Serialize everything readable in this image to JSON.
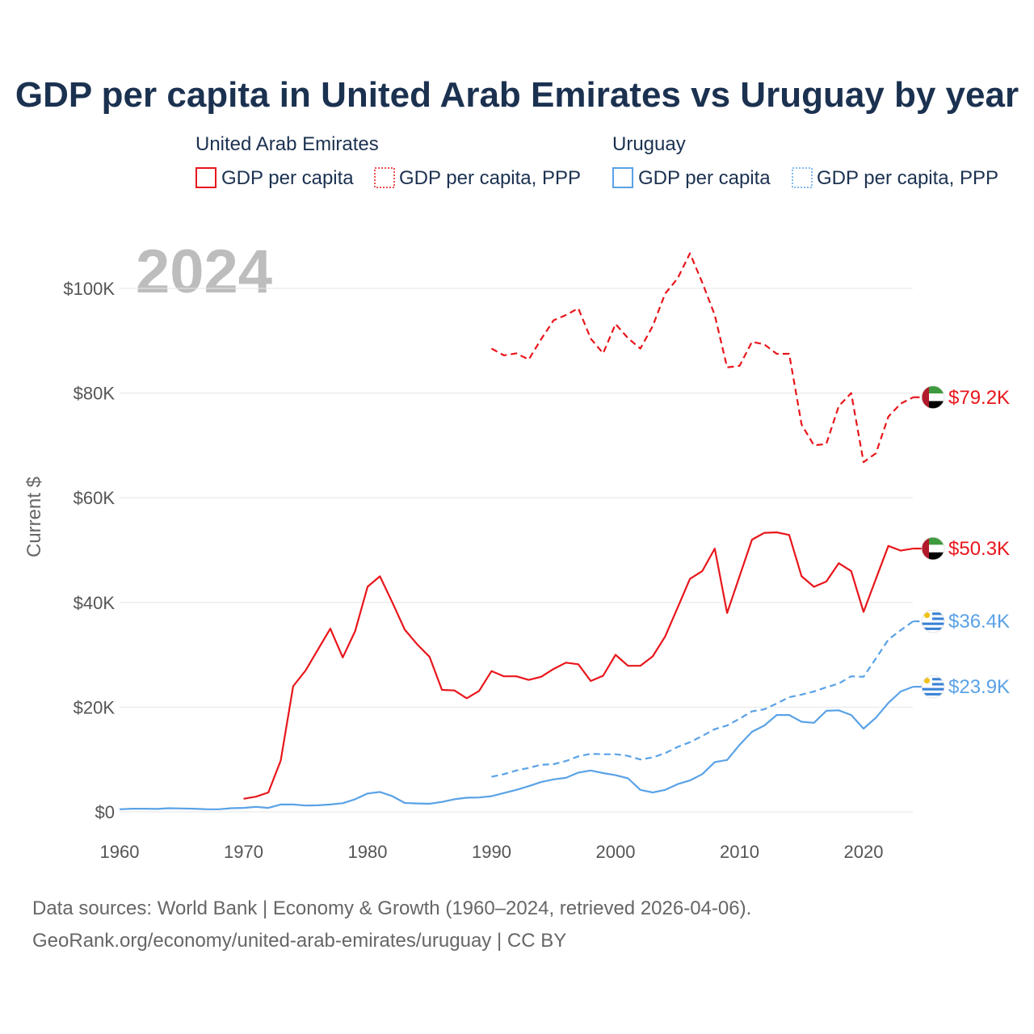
{
  "colors": {
    "uae": "#e8161b",
    "uruguay": "#5aa2e6",
    "title": "#1b3150",
    "tick": "#555555",
    "grid": "#e6e6e6"
  },
  "chart_data": {
    "type": "line",
    "title": "GDP per capita in United Arab Emirates vs Uruguay by year",
    "ylabel": "Current $",
    "xlabel": "",
    "year_label": "2024",
    "xlim": [
      1960,
      2024
    ],
    "ylim": [
      0,
      110000
    ],
    "xticks": [
      1960,
      1970,
      1980,
      1990,
      2000,
      2010,
      2020
    ],
    "xtick_labels": [
      "1960",
      "1970",
      "1980",
      "1990",
      "2000",
      "2010",
      "2020"
    ],
    "yticks": [
      0,
      20000,
      40000,
      60000,
      80000,
      100000
    ],
    "ytick_labels": [
      "$0",
      "$20K",
      "$40K",
      "$60K",
      "$80K",
      "$100K"
    ],
    "legend": {
      "groups": [
        {
          "name": "United Arab Emirates",
          "entries": [
            "GDP per capita",
            "GDP per capita, PPP"
          ]
        },
        {
          "name": "Uruguay",
          "entries": [
            "GDP per capita",
            "GDP per capita, PPP"
          ]
        }
      ]
    },
    "series": [
      {
        "name": "United Arab Emirates GDP per capita",
        "country": "uae",
        "dashed": false,
        "end_label": "$50.3K",
        "x": [
          1970,
          1971,
          1972,
          1973,
          1974,
          1975,
          1976,
          1977,
          1978,
          1979,
          1980,
          1981,
          1982,
          1983,
          1984,
          1985,
          1986,
          1987,
          1988,
          1989,
          1990,
          1991,
          1992,
          1993,
          1994,
          1995,
          1996,
          1997,
          1998,
          1999,
          2000,
          2001,
          2002,
          2003,
          2004,
          2005,
          2006,
          2007,
          2008,
          2009,
          2010,
          2011,
          2012,
          2013,
          2014,
          2015,
          2016,
          2017,
          2018,
          2019,
          2020,
          2021,
          2022,
          2023,
          2024
        ],
        "values": [
          2500,
          2900,
          3700,
          9800,
          24000,
          27000,
          31000,
          35000,
          29500,
          34500,
          43000,
          45000,
          40000,
          34800,
          32000,
          29600,
          23300,
          23200,
          21700,
          23100,
          26900,
          25900,
          25900,
          25200,
          25800,
          27300,
          28500,
          28200,
          25000,
          26000,
          30000,
          27900,
          27900,
          29700,
          33500,
          39000,
          44500,
          46000,
          50300,
          38000,
          45000,
          52000,
          53300,
          53400,
          52900,
          45000,
          43000,
          44000,
          47500,
          46000,
          38200,
          44500,
          50800,
          49900,
          50300
        ]
      },
      {
        "name": "United Arab Emirates GDP per capita, PPP",
        "country": "uae",
        "dashed": true,
        "end_label": "$79.2K",
        "x": [
          1990,
          1991,
          1992,
          1993,
          1994,
          1995,
          1996,
          1997,
          1998,
          1999,
          2000,
          2001,
          2002,
          2003,
          2004,
          2005,
          2006,
          2007,
          2008,
          2009,
          2010,
          2011,
          2012,
          2013,
          2014,
          2015,
          2016,
          2017,
          2018,
          2019,
          2020,
          2021,
          2022,
          2023,
          2024
        ],
        "values": [
          88500,
          87200,
          87600,
          86400,
          90300,
          93900,
          94900,
          96200,
          90400,
          87600,
          93200,
          90500,
          88500,
          92800,
          99000,
          101900,
          106700,
          101100,
          94900,
          84900,
          85200,
          89800,
          89300,
          87500,
          87500,
          74000,
          70000,
          70300,
          77500,
          80000,
          66800,
          68500,
          75500,
          78000,
          79200
        ]
      },
      {
        "name": "Uruguay GDP per capita",
        "country": "uruguay",
        "dashed": false,
        "end_label": "$23.9K",
        "x": [
          1960,
          1961,
          1962,
          1963,
          1964,
          1965,
          1966,
          1967,
          1968,
          1969,
          1970,
          1971,
          1972,
          1973,
          1974,
          1975,
          1976,
          1977,
          1978,
          1979,
          1980,
          1981,
          1982,
          1983,
          1984,
          1985,
          1986,
          1987,
          1988,
          1989,
          1990,
          1991,
          1992,
          1993,
          1994,
          1995,
          1996,
          1997,
          1998,
          1999,
          2000,
          2001,
          2002,
          2003,
          2004,
          2005,
          2006,
          2007,
          2008,
          2009,
          2010,
          2011,
          2012,
          2013,
          2014,
          2015,
          2016,
          2017,
          2018,
          2019,
          2020,
          2021,
          2022,
          2023,
          2024
        ],
        "values": [
          500,
          600,
          600,
          550,
          700,
          650,
          600,
          500,
          500,
          700,
          750,
          950,
          750,
          1400,
          1400,
          1200,
          1250,
          1400,
          1650,
          2400,
          3500,
          3800,
          3000,
          1700,
          1600,
          1550,
          1900,
          2400,
          2700,
          2750,
          3000,
          3600,
          4200,
          4900,
          5700,
          6200,
          6500,
          7500,
          7900,
          7400,
          7000,
          6400,
          4200,
          3700,
          4200,
          5300,
          6000,
          7200,
          9500,
          9900,
          12800,
          15300,
          16500,
          18500,
          18500,
          17200,
          17000,
          19300,
          19400,
          18500,
          15900,
          18000,
          20800,
          23000,
          23900
        ]
      },
      {
        "name": "Uruguay GDP per capita, PPP",
        "country": "uruguay",
        "dashed": true,
        "end_label": "$36.4K",
        "x": [
          1990,
          1991,
          1992,
          1993,
          1994,
          1995,
          1996,
          1997,
          1998,
          1999,
          2000,
          2001,
          2002,
          2003,
          2004,
          2005,
          2006,
          2007,
          2008,
          2009,
          2010,
          2011,
          2012,
          2013,
          2014,
          2015,
          2016,
          2017,
          2018,
          2019,
          2020,
          2021,
          2022,
          2023,
          2024
        ],
        "values": [
          6700,
          7200,
          7900,
          8400,
          9000,
          9100,
          9700,
          10600,
          11100,
          11000,
          11000,
          10700,
          10000,
          10400,
          11200,
          12400,
          13300,
          14500,
          15800,
          16500,
          17800,
          19200,
          19600,
          20700,
          21900,
          22400,
          23000,
          23800,
          24500,
          25900,
          25800,
          29300,
          32900,
          34700,
          36400
        ]
      }
    ]
  },
  "source": {
    "line1": "Data sources: World Bank | Economy & Growth (1960–2024, retrieved 2026-04-06).",
    "line2": "GeoRank.org/economy/united-arab-emirates/uruguay | CC BY"
  }
}
